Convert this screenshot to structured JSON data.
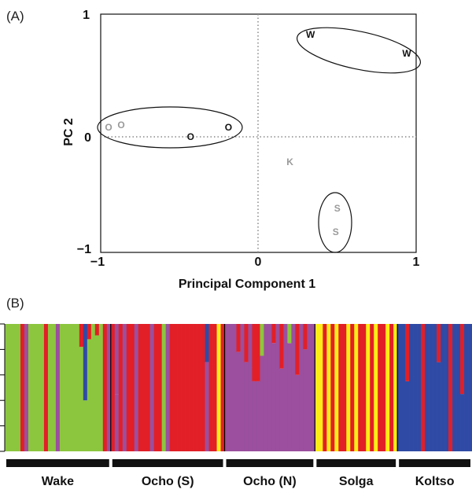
{
  "chart_data": [
    {
      "type": "scatter",
      "panel_label": "(A)",
      "xlabel": "Principal Component 1",
      "ylabel": "PC 2",
      "xlim": [
        -1,
        1
      ],
      "ylim": [
        -1,
        1
      ],
      "x_ticks": [
        "−1",
        "0",
        "1"
      ],
      "y_ticks": [
        "1",
        "0",
        "−1"
      ],
      "reference_lines": "dotted lines at x = 0 and y = 0",
      "points": [
        {
          "label": "O",
          "x": -0.95,
          "y": 0.05,
          "color": "#9a9a9a"
        },
        {
          "label": "O",
          "x": -0.87,
          "y": 0.07,
          "color": "#9a9a9a"
        },
        {
          "label": "O",
          "x": -0.43,
          "y": -0.03,
          "color": "#111111"
        },
        {
          "label": "O",
          "x": -0.19,
          "y": 0.05,
          "color": "#111111"
        },
        {
          "label": "W",
          "x": 0.33,
          "y": 0.83,
          "color": "#111111"
        },
        {
          "label": "W",
          "x": 0.94,
          "y": 0.67,
          "color": "#111111"
        },
        {
          "label": "K",
          "x": 0.2,
          "y": -0.24,
          "color": "#9a9a9a"
        },
        {
          "label": "S",
          "x": 0.5,
          "y": -0.63,
          "color": "#9a9a9a"
        },
        {
          "label": "S",
          "x": 0.49,
          "y": -0.83,
          "color": "#9a9a9a"
        }
      ],
      "groups": [
        "O",
        "W",
        "S"
      ]
    },
    {
      "type": "bar",
      "stacked": true,
      "panel_label": "(B)",
      "series_colors": [
        "#8cc63f",
        "#e21f26",
        "#9b4f9e",
        "#ffec17",
        "#2f4aa5"
      ],
      "populations": [
        {
          "name": "Wake",
          "base": "#8cc63f",
          "start": 0,
          "count": 27
        },
        {
          "name": "Ocho (S)",
          "base": "#9b4f9e",
          "start": 27,
          "count": 29
        },
        {
          "name": "Ocho (N)",
          "base": "#9b4f9e",
          "start": 56,
          "count": 23
        },
        {
          "name": "Solga",
          "base": "#ffec17",
          "start": 79,
          "count": 21
        },
        {
          "name": "Koltso",
          "base": "#2f4aa5",
          "start": 100,
          "count": 19
        }
      ],
      "total_individuals": 119,
      "admixed": [
        {
          "i": 4,
          "c": "#e21f26",
          "q": 1
        },
        {
          "i": 5,
          "c": "#9b4f9e",
          "q": 1
        },
        {
          "i": 10,
          "c": "#e21f26",
          "q": 1
        },
        {
          "i": 13,
          "c": "#9b4f9e",
          "q": 1
        },
        {
          "i": 19,
          "c": "#e21f26",
          "q": 0.18
        },
        {
          "i": 20,
          "c": "#2f4aa5",
          "q": 0.6
        },
        {
          "i": 21,
          "c": "#e21f26",
          "q": 0.12
        },
        {
          "i": 23,
          "c": "#e21f26",
          "q": 0.09
        },
        {
          "i": 25,
          "c": "#e21f26",
          "q": 1
        },
        {
          "i": 26,
          "c": "#9b4f9e",
          "q": 1
        },
        {
          "i": 27,
          "c": "#e21f26",
          "q": 1
        },
        {
          "i": 28,
          "c": "#9b4f9e",
          "q": 0.55
        },
        {
          "i": 29,
          "c": "#e21f26",
          "q": 1
        },
        {
          "i": 31,
          "c": "#e21f26",
          "q": 1
        },
        {
          "i": 32,
          "c": "#e21f26",
          "q": 1
        },
        {
          "i": 34,
          "c": "#e21f26",
          "q": 1
        },
        {
          "i": 35,
          "c": "#e21f26",
          "q": 1
        },
        {
          "i": 36,
          "c": "#e21f26",
          "q": 1
        },
        {
          "i": 38,
          "c": "#e21f26",
          "q": 1
        },
        {
          "i": 39,
          "c": "#e21f26",
          "q": 1
        },
        {
          "i": 40,
          "c": "#8cc63f",
          "q": 1
        },
        {
          "i": 42,
          "c": "#e21f26",
          "q": 1
        },
        {
          "i": 43,
          "c": "#e21f26",
          "q": 1
        },
        {
          "i": 44,
          "c": "#e21f26",
          "q": 1
        },
        {
          "i": 45,
          "c": "#e21f26",
          "q": 1
        },
        {
          "i": 46,
          "c": "#e21f26",
          "q": 1
        },
        {
          "i": 47,
          "c": "#e21f26",
          "q": 1
        },
        {
          "i": 48,
          "c": "#e21f26",
          "q": 1
        },
        {
          "i": 49,
          "c": "#e21f26",
          "q": 1
        },
        {
          "i": 50,
          "c": "#e21f26",
          "q": 1
        },
        {
          "i": 51,
          "c": "#2f4aa5",
          "q": 0.3
        },
        {
          "i": 52,
          "c": "#e21f26",
          "q": 1
        },
        {
          "i": 53,
          "c": "#e21f26",
          "q": 1
        },
        {
          "i": 54,
          "c": "#ffec17",
          "q": 1
        },
        {
          "i": 55,
          "c": "#e21f26",
          "q": 1
        },
        {
          "i": 59,
          "c": "#e21f26",
          "q": 0.22
        },
        {
          "i": 61,
          "c": "#e21f26",
          "q": 0.3
        },
        {
          "i": 63,
          "c": "#e21f26",
          "q": 0.45
        },
        {
          "i": 64,
          "c": "#e21f26",
          "q": 0.45
        },
        {
          "i": 65,
          "c": "#8cc63f",
          "q": 0.25
        },
        {
          "i": 68,
          "c": "#e21f26",
          "q": 0.15
        },
        {
          "i": 70,
          "c": "#e21f26",
          "q": 0.35
        },
        {
          "i": 72,
          "c": "#8cc63f",
          "q": 0.15
        },
        {
          "i": 74,
          "c": "#e21f26",
          "q": 0.4
        },
        {
          "i": 76,
          "c": "#e21f26",
          "q": 0.2
        },
        {
          "i": 81,
          "c": "#e21f26",
          "q": 1
        },
        {
          "i": 83,
          "c": "#e21f26",
          "q": 1
        },
        {
          "i": 85,
          "c": "#e21f26",
          "q": 1
        },
        {
          "i": 86,
          "c": "#e21f26",
          "q": 1
        },
        {
          "i": 88,
          "c": "#e21f26",
          "q": 1
        },
        {
          "i": 90,
          "c": "#e21f26",
          "q": 1
        },
        {
          "i": 91,
          "c": "#e21f26",
          "q": 1
        },
        {
          "i": 93,
          "c": "#e21f26",
          "q": 1
        },
        {
          "i": 95,
          "c": "#e21f26",
          "q": 1
        },
        {
          "i": 96,
          "c": "#e21f26",
          "q": 1
        },
        {
          "i": 98,
          "c": "#e21f26",
          "q": 1
        },
        {
          "i": 102,
          "c": "#e21f26",
          "q": 0.45
        },
        {
          "i": 106,
          "c": "#e21f26",
          "q": 1
        },
        {
          "i": 110,
          "c": "#e21f26",
          "q": 0.3
        },
        {
          "i": 113,
          "c": "#e21f26",
          "q": 1
        },
        {
          "i": 116,
          "c": "#e21f26",
          "q": 0.55
        }
      ]
    }
  ]
}
